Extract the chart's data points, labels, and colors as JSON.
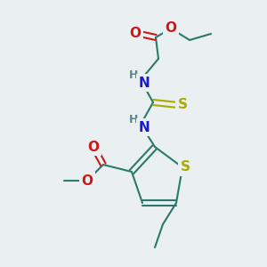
{
  "bg_color": "#eaeff2",
  "bond_color": "#2a7a6a",
  "colors": {
    "N": "#1818cc",
    "O": "#cc1818",
    "S": "#aaaa00",
    "H": "#5a8888",
    "C": "#2a7a6a"
  }
}
